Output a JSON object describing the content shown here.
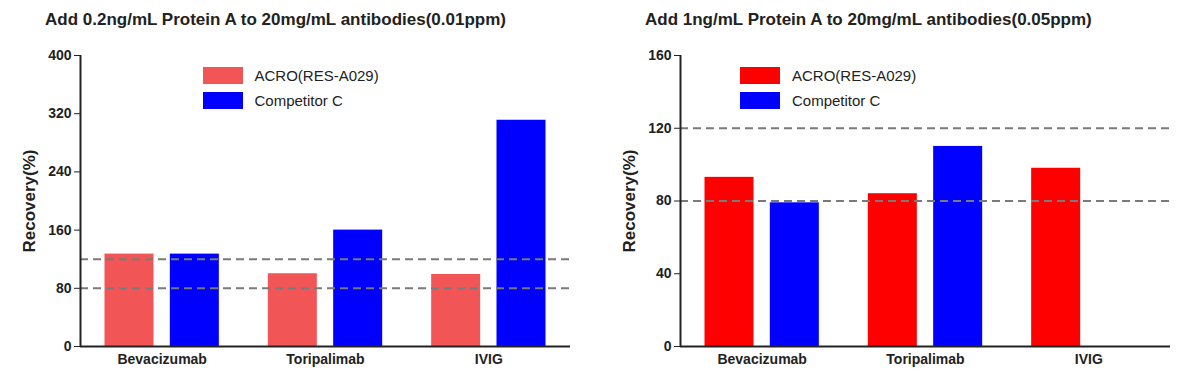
{
  "chart_data": [
    {
      "type": "bar",
      "title": "Add 0.2ng/mL Protein A to 20mg/mL antibodies(0.01ppm)",
      "y_label": "Recovery(%)",
      "categories": [
        "Bevacizumab",
        "Toripalimab",
        "IVIG"
      ],
      "series": [
        {
          "name": "ACRO(RES-A029)",
          "color": "#f25555",
          "values": [
            127,
            100,
            99
          ]
        },
        {
          "name": "Competitor C",
          "color": "#0000ff",
          "values": [
            127,
            160,
            311
          ]
        }
      ],
      "ylim": [
        0,
        400
      ],
      "yticks": [
        0,
        80,
        160,
        240,
        320,
        400
      ],
      "reference_lines": [
        80,
        120
      ],
      "legend": "top"
    },
    {
      "type": "bar",
      "title": "Add 1ng/mL Protein A to 20mg/mL antibodies(0.05ppm)",
      "y_label": "Recovery(%)",
      "categories": [
        "Bevacizumab",
        "Toripalimab",
        "IVIG"
      ],
      "series": [
        {
          "name": "ACRO(RES-A029)",
          "color": "#ff0000",
          "values": [
            93,
            84,
            98
          ]
        },
        {
          "name": "Competitor C",
          "color": "#0000ff",
          "values": [
            79,
            110,
            null
          ]
        }
      ],
      "ylim": [
        0,
        160
      ],
      "yticks": [
        0,
        40,
        80,
        120,
        160
      ],
      "reference_lines": [
        80,
        120
      ],
      "legend": "top-left"
    }
  ]
}
